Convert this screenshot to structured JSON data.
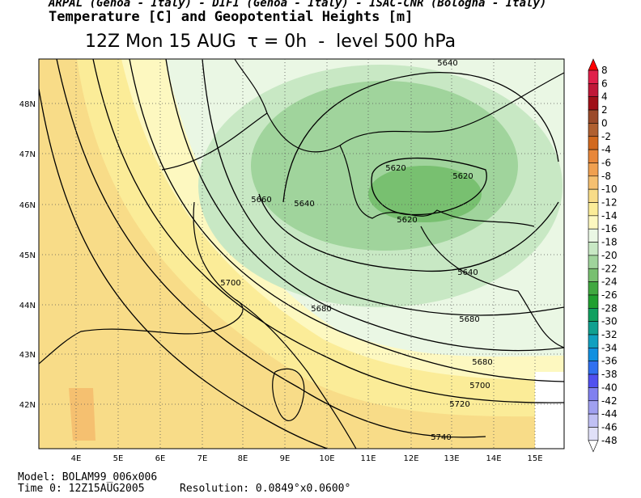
{
  "header": {
    "credits": "ARPAL (Genoa - Italy)  -  DIFI (Genoa - Italy)  -  ISAC-CNR (Bologna - Italy)",
    "title": "Temperature [C] and Geopotential Heights [m]",
    "subtitle": "12Z Mon 15 AUG  τ = 0h  -  level 500 hPa"
  },
  "map": {
    "lat_labels": [
      "48N",
      "47N",
      "46N",
      "45N",
      "44N",
      "43N",
      "42N"
    ],
    "lon_labels": [
      "4E",
      "5E",
      "6E",
      "7E",
      "8E",
      "9E",
      "10E",
      "11E",
      "12E",
      "13E",
      "14E",
      "15E"
    ],
    "contour_labels": [
      "5640",
      "5620",
      "5620",
      "5660",
      "5640",
      "5620",
      "5700",
      "5640",
      "5680",
      "5680",
      "5680",
      "5700",
      "5720",
      "5740"
    ]
  },
  "colorbar": {
    "labels": [
      "8",
      "6",
      "4",
      "2",
      "0",
      "-2",
      "-4",
      "-6",
      "-8",
      "-10",
      "-12",
      "-14",
      "-16",
      "-18",
      "-20",
      "-22",
      "-24",
      "-26",
      "-28",
      "-30",
      "-32",
      "-34",
      "-36",
      "-38",
      "-40",
      "-42",
      "-44",
      "-46",
      "-48"
    ],
    "colors": [
      "#ff0000",
      "#e0204a",
      "#c01838",
      "#a01018",
      "#9b4a2a",
      "#b06030",
      "#d2691e",
      "#e8873a",
      "#f0a050",
      "#f5c070",
      "#f8dc88",
      "#fbec98",
      "#fdf8c0",
      "#eaf7e4",
      "#c8e8c4",
      "#a0d49c",
      "#78c070",
      "#40a840",
      "#20a030",
      "#10a060",
      "#10a090",
      "#10a0c0",
      "#1090e0",
      "#3070f0",
      "#5050f0",
      "#8080f0",
      "#a0a0f0",
      "#c0c0f4",
      "#e0e0f8",
      "#ffffff"
    ]
  },
  "footer": {
    "model": "Model: BOLAM99_006x006",
    "time": "Time 0: 12Z15AUG2005",
    "resolution": "Resolution: 0.0849°x0.0600°"
  }
}
